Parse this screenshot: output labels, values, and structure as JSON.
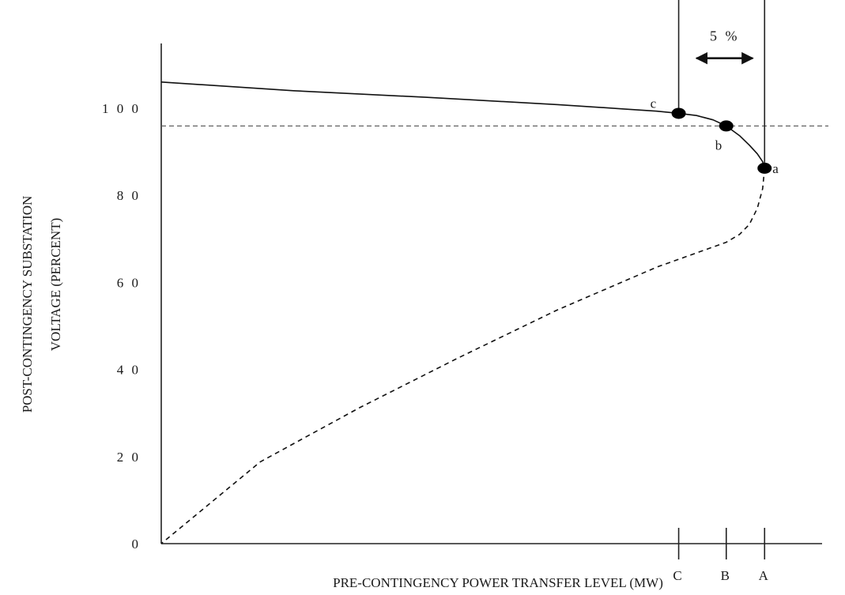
{
  "chart_data": {
    "type": "line",
    "title": "",
    "xlabel": "PRE-CONTINGENCY  POWER  TRANSFER  LEVEL  (MW)",
    "ylabel": [
      "POST-CONTINGENCY SUBSTATION",
      "VOLTAGE  (PERCENT)"
    ],
    "ylim": [
      0,
      120
    ],
    "y_ticks": [
      {
        "value": 0,
        "label": "0"
      },
      {
        "value": 20,
        "label": "2 0"
      },
      {
        "value": 40,
        "label": "4 0"
      },
      {
        "value": 60,
        "label": "6 0"
      },
      {
        "value": 80,
        "label": "8 0"
      },
      {
        "value": 100,
        "label": "1 0 0"
      }
    ],
    "xlim": [
      0,
      10
    ],
    "x_ticks": [
      {
        "value": 7.83,
        "label": "C"
      },
      {
        "value": 8.55,
        "label": "B"
      },
      {
        "value": 9.13,
        "label": "A"
      }
    ],
    "grid": false,
    "series": [
      {
        "style": "solid",
        "x": [
          0,
          2,
          4,
          6,
          7,
          7.5,
          7.83,
          8.1,
          8.35,
          8.55,
          8.75,
          8.9,
          9.02,
          9.1,
          9.13
        ],
        "y": [
          106,
          104,
          102.5,
          100.8,
          99.8,
          99.3,
          98.8,
          98.3,
          97.3,
          95.9,
          93.7,
          91.5,
          89.5,
          87.7,
          86.2
        ]
      },
      {
        "style": "dashed",
        "x": [
          9.13,
          9.1,
          9.02,
          8.9,
          8.75,
          8.55,
          7.5,
          6.0,
          4.5,
          3.0,
          1.5,
          0
        ],
        "y": [
          86.2,
          81.5,
          77,
          73.3,
          71,
          69.2,
          63.5,
          53.7,
          42.7,
          31.2,
          18.8,
          0
        ]
      }
    ],
    "reference_line": {
      "y": 95.9,
      "style": "dashed"
    },
    "vertical_lines": [
      {
        "x": 7.83,
        "y_from": 99.3,
        "y_to": 128
      },
      {
        "x": 9.13,
        "y_from": 86.2,
        "y_to": 128
      }
    ],
    "points": [
      {
        "label": "c",
        "x": 7.83,
        "y": 98.8
      },
      {
        "label": "b",
        "x": 8.55,
        "y": 95.9
      },
      {
        "label": "a",
        "x": 9.13,
        "y": 86.2
      }
    ],
    "annotations": [
      {
        "text": "5 %",
        "type": "double-arrow",
        "x_from": 8.1,
        "x_to": 8.95,
        "y": 112
      }
    ]
  }
}
